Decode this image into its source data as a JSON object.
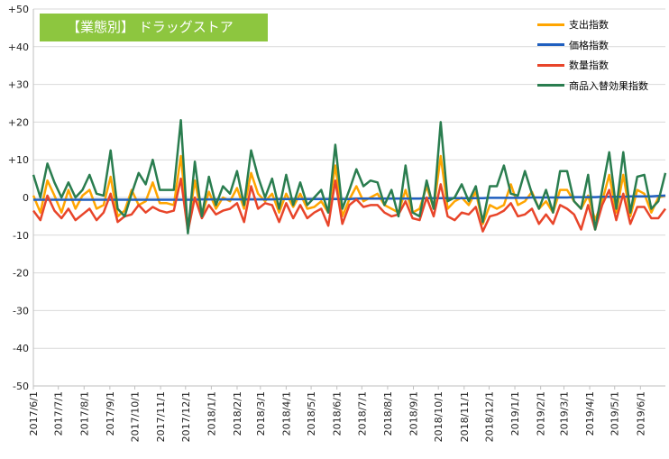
{
  "chart_data": {
    "type": "line",
    "title": "【業態別】 ドラッグストア",
    "ylim": [
      -50,
      50
    ],
    "yticks": [
      "+50",
      "+40",
      "+30",
      "+20",
      "+10",
      "0",
      "-10",
      "-20",
      "-30",
      "-40",
      "-50"
    ],
    "xtick_labels": [
      "2017/6/1",
      "2017/7/1",
      "2017/8/1",
      "2017/9/1",
      "2017/10/1",
      "2017/11/1",
      "2017/12/1",
      "2018/1/1",
      "2018/2/1",
      "2018/3/1",
      "2018/4/1",
      "2018/5/1",
      "2018/6/1",
      "2018/7/1",
      "2018/8/1",
      "2018/9/1",
      "2018/10/1",
      "2018/11/1",
      "2018/12/1",
      "2019/1/1",
      "2019/2/1",
      "2019/3/1",
      "2019/4/1",
      "2019/5/1",
      "2019/6/1"
    ],
    "x_start": "2017/6/1",
    "x_end": "2019/7/1",
    "grid": true,
    "legend_position": "top-right",
    "series": [
      {
        "name": "支出指数",
        "color": "#ffa500",
        "values": [
          0.5,
          -4.0,
          4.5,
          0.5,
          -4.0,
          2.0,
          -3.0,
          0.5,
          2.0,
          -3.0,
          -2.0,
          5.5,
          -5.0,
          -3.5,
          2.0,
          -2.0,
          -1.0,
          4.0,
          -1.5,
          -1.5,
          -2.0,
          11.0,
          -8.0,
          4.5,
          -5.0,
          1.5,
          -3.0,
          0.0,
          -1.0,
          2.5,
          -3.0,
          6.5,
          1.0,
          -1.0,
          1.0,
          -4.0,
          1.0,
          -2.5,
          1.0,
          -3.0,
          -2.5,
          -1.0,
          -4.0,
          8.5,
          -5.0,
          -0.5,
          3.0,
          -1.0,
          0.0,
          1.0,
          -2.0,
          -3.0,
          -4.0,
          2.0,
          -4.0,
          -3.0,
          3.0,
          -3.0,
          11.0,
          -3.0,
          -1.0,
          0.0,
          -2.0,
          1.5,
          -7.0,
          -2.0,
          -3.0,
          -2.0,
          3.5,
          -2.0,
          -1.0,
          1.5,
          -3.0,
          -1.0,
          -4.0,
          2.0,
          2.0,
          -1.0,
          -3.0,
          0.5,
          -6.0,
          -1.0,
          6.0,
          -4.0,
          6.0,
          -5.0,
          2.0,
          1.0,
          -4.0,
          0.0,
          0.5
        ]
      },
      {
        "name": "価格指数",
        "color": "#1f5fbf",
        "values": [
          -0.6,
          -0.6,
          -0.6,
          -0.6,
          -0.6,
          -0.6,
          -0.6,
          -0.6,
          -0.6,
          -0.6,
          -0.6,
          -0.6,
          -0.6,
          -0.6,
          -0.6,
          -0.6,
          -0.6,
          -0.6,
          -0.6,
          -0.6,
          -0.6,
          -0.6,
          -0.6,
          -0.6,
          -0.5,
          -0.5,
          -0.5,
          -0.5,
          -0.5,
          -0.5,
          -0.5,
          -0.5,
          -0.5,
          -0.5,
          -0.5,
          -0.4,
          -0.4,
          -0.4,
          -0.4,
          -0.4,
          -0.4,
          -0.4,
          -0.4,
          -0.4,
          -0.4,
          -0.4,
          -0.3,
          -0.3,
          -0.3,
          -0.3,
          -0.3,
          -0.3,
          -0.3,
          -0.3,
          -0.3,
          -0.3,
          -0.2,
          -0.2,
          -0.2,
          -0.2,
          -0.2,
          -0.2,
          -0.2,
          -0.2,
          -0.2,
          -0.1,
          -0.1,
          -0.1,
          -0.1,
          -0.1,
          -0.1,
          0.0,
          0.0,
          0.0,
          0.0,
          0.0,
          0.0,
          0.1,
          0.1,
          0.1,
          0.1,
          0.2,
          0.2,
          0.2,
          0.2,
          0.3,
          0.3,
          0.3,
          0.3,
          0.4,
          0.5
        ]
      },
      {
        "name": "数量指数",
        "color": "#e8452a",
        "values": [
          -3.5,
          -6.0,
          0.5,
          -3.5,
          -5.5,
          -3.0,
          -6.0,
          -4.5,
          -3.0,
          -6.0,
          -4.0,
          1.0,
          -6.5,
          -5.0,
          -4.5,
          -2.0,
          -4.0,
          -2.5,
          -3.5,
          -4.0,
          -3.5,
          5.0,
          -9.0,
          0.0,
          -5.5,
          -2.0,
          -4.5,
          -3.5,
          -3.0,
          -1.5,
          -6.5,
          3.0,
          -3.0,
          -1.5,
          -2.0,
          -6.5,
          -1.5,
          -5.5,
          -2.0,
          -5.5,
          -4.0,
          -3.0,
          -7.5,
          4.5,
          -7.0,
          -2.0,
          -0.5,
          -2.5,
          -2.0,
          -2.0,
          -4.0,
          -5.0,
          -4.5,
          -1.0,
          -5.5,
          -6.0,
          0.0,
          -5.0,
          3.5,
          -5.0,
          -6.0,
          -4.0,
          -4.5,
          -2.5,
          -9.0,
          -5.0,
          -4.5,
          -3.5,
          -1.5,
          -5.0,
          -4.5,
          -3.0,
          -7.0,
          -4.5,
          -7.0,
          -2.0,
          -3.0,
          -4.5,
          -8.5,
          -2.0,
          -8.5,
          -2.0,
          2.0,
          -6.0,
          1.0,
          -7.0,
          -2.5,
          -2.5,
          -5.5,
          -5.5,
          -3.0
        ]
      },
      {
        "name": "商品入替効果指数",
        "color": "#2a7d4f",
        "values": [
          6.0,
          0.0,
          9.0,
          4.0,
          0.0,
          4.0,
          0.0,
          2.0,
          6.0,
          1.0,
          0.5,
          12.5,
          -3.0,
          -5.0,
          1.0,
          6.5,
          3.5,
          10.0,
          2.0,
          2.0,
          2.0,
          20.5,
          -9.5,
          9.5,
          -5.0,
          5.5,
          -2.0,
          3.0,
          1.0,
          7.0,
          -2.0,
          12.5,
          5.5,
          0.0,
          5.0,
          -3.0,
          6.0,
          -2.0,
          4.0,
          -2.0,
          0.0,
          2.0,
          -4.0,
          14.0,
          -3.0,
          2.0,
          7.5,
          3.0,
          4.5,
          4.0,
          -2.0,
          2.0,
          -5.0,
          8.5,
          -4.0,
          -5.0,
          4.5,
          -3.0,
          20.0,
          -1.0,
          0.0,
          3.5,
          -1.0,
          3.0,
          -6.5,
          3.0,
          3.0,
          8.5,
          1.0,
          0.5,
          7.0,
          1.0,
          -3.0,
          2.0,
          -4.0,
          7.0,
          7.0,
          -1.0,
          -3.0,
          6.0,
          -8.5,
          2.0,
          12.0,
          -3.0,
          12.0,
          -4.0,
          5.5,
          6.0,
          -3.0,
          -1.0,
          6.5
        ]
      }
    ]
  }
}
